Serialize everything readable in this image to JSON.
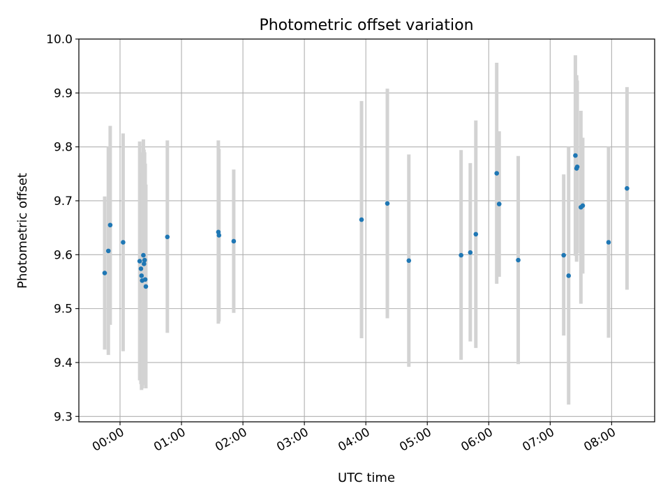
{
  "chart_data": {
    "type": "scatter",
    "title": "Photometric offset variation",
    "xlabel": "UTC time",
    "ylabel": "Photometric offset",
    "x_unit": "hours",
    "xlim": [
      -0.67,
      8.7
    ],
    "ylim": [
      9.29,
      10.0
    ],
    "x_ticks": [
      {
        "value": 0,
        "label": "00:00"
      },
      {
        "value": 1,
        "label": "01:00"
      },
      {
        "value": 2,
        "label": "02:00"
      },
      {
        "value": 3,
        "label": "03:00"
      },
      {
        "value": 4,
        "label": "04:00"
      },
      {
        "value": 5,
        "label": "05:00"
      },
      {
        "value": 6,
        "label": "06:00"
      },
      {
        "value": 7,
        "label": "07:00"
      },
      {
        "value": 8,
        "label": "08:00"
      }
    ],
    "y_ticks": [
      {
        "value": 9.3,
        "label": "9.3"
      },
      {
        "value": 9.4,
        "label": "9.4"
      },
      {
        "value": 9.5,
        "label": "9.5"
      },
      {
        "value": 9.6,
        "label": "9.6"
      },
      {
        "value": 9.7,
        "label": "9.7"
      },
      {
        "value": 9.8,
        "label": "9.8"
      },
      {
        "value": 9.9,
        "label": "9.9"
      },
      {
        "value": 10.0,
        "label": "10.0"
      }
    ],
    "grid": true,
    "marker_color": "#1f77b4",
    "errorbar_color": "#d3d3d3",
    "points": [
      {
        "x": -0.25,
        "y": 9.566,
        "lo": 9.424,
        "hi": 9.708
      },
      {
        "x": -0.19,
        "y": 9.607,
        "lo": 9.414,
        "hi": 9.8
      },
      {
        "x": -0.16,
        "y": 9.655,
        "lo": 9.47,
        "hi": 9.839
      },
      {
        "x": 0.05,
        "y": 9.623,
        "lo": 9.421,
        "hi": 9.825
      },
      {
        "x": 0.32,
        "y": 9.588,
        "lo": 9.367,
        "hi": 9.81
      },
      {
        "x": 0.34,
        "y": 9.574,
        "lo": 9.36,
        "hi": 9.79
      },
      {
        "x": 0.35,
        "y": 9.561,
        "lo": 9.349,
        "hi": 9.774
      },
      {
        "x": 0.36,
        "y": 9.552,
        "lo": 9.352,
        "hi": 9.752
      },
      {
        "x": 0.38,
        "y": 9.599,
        "lo": 9.384,
        "hi": 9.814
      },
      {
        "x": 0.39,
        "y": 9.583,
        "lo": 9.372,
        "hi": 9.795
      },
      {
        "x": 0.4,
        "y": 9.59,
        "lo": 9.39,
        "hi": 9.79
      },
      {
        "x": 0.41,
        "y": 9.554,
        "lo": 9.358,
        "hi": 9.769
      },
      {
        "x": 0.42,
        "y": 9.541,
        "lo": 9.352,
        "hi": 9.73
      },
      {
        "x": 0.77,
        "y": 9.633,
        "lo": 9.455,
        "hi": 9.812
      },
      {
        "x": 1.6,
        "y": 9.642,
        "lo": 9.472,
        "hi": 9.812
      },
      {
        "x": 1.61,
        "y": 9.636,
        "lo": 9.476,
        "hi": 9.796
      },
      {
        "x": 1.85,
        "y": 9.625,
        "lo": 9.492,
        "hi": 9.758
      },
      {
        "x": 3.93,
        "y": 9.665,
        "lo": 9.445,
        "hi": 9.885
      },
      {
        "x": 4.35,
        "y": 9.695,
        "lo": 9.482,
        "hi": 9.908
      },
      {
        "x": 4.7,
        "y": 9.589,
        "lo": 9.392,
        "hi": 9.786
      },
      {
        "x": 5.55,
        "y": 9.599,
        "lo": 9.405,
        "hi": 9.794
      },
      {
        "x": 5.7,
        "y": 9.604,
        "lo": 9.439,
        "hi": 9.77
      },
      {
        "x": 5.79,
        "y": 9.638,
        "lo": 9.427,
        "hi": 9.849
      },
      {
        "x": 6.13,
        "y": 9.751,
        "lo": 9.546,
        "hi": 9.956
      },
      {
        "x": 6.17,
        "y": 9.694,
        "lo": 9.559,
        "hi": 9.829
      },
      {
        "x": 6.48,
        "y": 9.59,
        "lo": 9.397,
        "hi": 9.783
      },
      {
        "x": 7.22,
        "y": 9.599,
        "lo": 9.45,
        "hi": 9.749
      },
      {
        "x": 7.3,
        "y": 9.561,
        "lo": 9.322,
        "hi": 9.8
      },
      {
        "x": 7.41,
        "y": 9.784,
        "lo": 9.598,
        "hi": 9.97
      },
      {
        "x": 7.43,
        "y": 9.76,
        "lo": 9.587,
        "hi": 9.933
      },
      {
        "x": 7.44,
        "y": 9.763,
        "lo": 9.603,
        "hi": 9.923
      },
      {
        "x": 7.5,
        "y": 9.688,
        "lo": 9.509,
        "hi": 9.867
      },
      {
        "x": 7.53,
        "y": 9.691,
        "lo": 9.565,
        "hi": 9.817
      },
      {
        "x": 7.95,
        "y": 9.623,
        "lo": 9.446,
        "hi": 9.8
      },
      {
        "x": 8.25,
        "y": 9.723,
        "lo": 9.535,
        "hi": 9.911
      }
    ]
  }
}
